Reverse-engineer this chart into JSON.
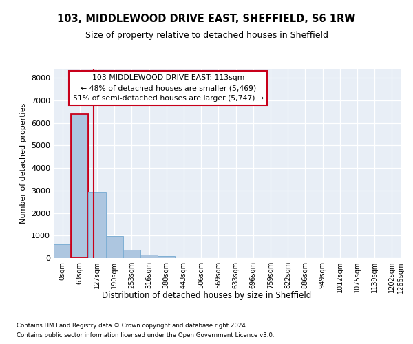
{
  "title1": "103, MIDDLEWOOD DRIVE EAST, SHEFFIELD, S6 1RW",
  "title2": "Size of property relative to detached houses in Sheffield",
  "xlabel": "Distribution of detached houses by size in Sheffield",
  "ylabel": "Number of detached properties",
  "bin_labels": [
    "0sqm",
    "63sqm",
    "127sqm",
    "190sqm",
    "253sqm",
    "316sqm",
    "380sqm",
    "443sqm",
    "506sqm",
    "569sqm",
    "633sqm",
    "696sqm",
    "759sqm",
    "822sqm",
    "886sqm",
    "949sqm",
    "1012sqm",
    "1075sqm",
    "1139sqm",
    "1202sqm"
  ],
  "bar_heights": [
    600,
    6400,
    2930,
    970,
    360,
    140,
    80,
    0,
    0,
    0,
    0,
    0,
    0,
    0,
    0,
    0,
    0,
    0,
    0,
    0
  ],
  "bar_color": "#adc6e0",
  "bar_edge_color": "#7fafd4",
  "highlight_bar_index": 1,
  "highlight_color": "#c8001a",
  "vline_x": 1.79,
  "annotation_line1": "103 MIDDLEWOOD DRIVE EAST: 113sqm",
  "annotation_line2": "← 48% of detached houses are smaller (5,469)",
  "annotation_line3": "51% of semi-detached houses are larger (5,747) →",
  "annotation_box_color": "#ffffff",
  "annotation_box_edge": "#c8001a",
  "ylim": [
    0,
    8400
  ],
  "yticks": [
    0,
    1000,
    2000,
    3000,
    4000,
    5000,
    6000,
    7000,
    8000
  ],
  "bg_color": "#e8eef6",
  "footer1": "Contains HM Land Registry data © Crown copyright and database right 2024.",
  "footer2": "Contains public sector information licensed under the Open Government Licence v3.0.",
  "fig_bg": "#ffffff"
}
